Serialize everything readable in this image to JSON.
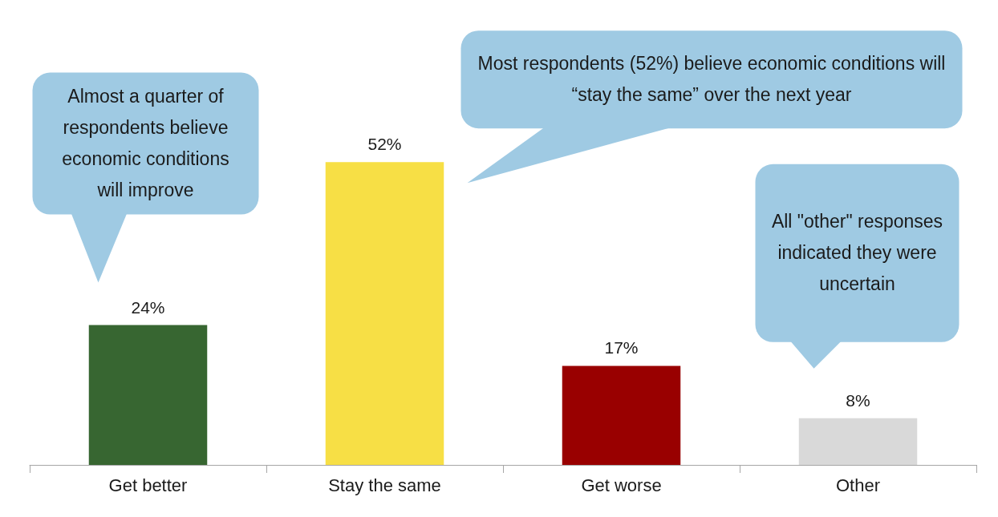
{
  "chart_data": {
    "type": "bar",
    "categories": [
      "Get better",
      "Stay the same",
      "Get worse",
      "Other"
    ],
    "values": [
      24,
      52,
      17,
      8
    ],
    "colors": [
      "#376631",
      "#f7df45",
      "#990000",
      "#d9d9d9"
    ],
    "value_labels": [
      "24%",
      "52%",
      "17%",
      "8%"
    ],
    "grid": false,
    "annotations": [
      "Almost a quarter of respondents believe economic conditions will improve",
      "Most respondents (52%) believe economic conditions will “stay the same” over the next year",
      "All \"other\" responses indicated they were uncertain"
    ]
  }
}
